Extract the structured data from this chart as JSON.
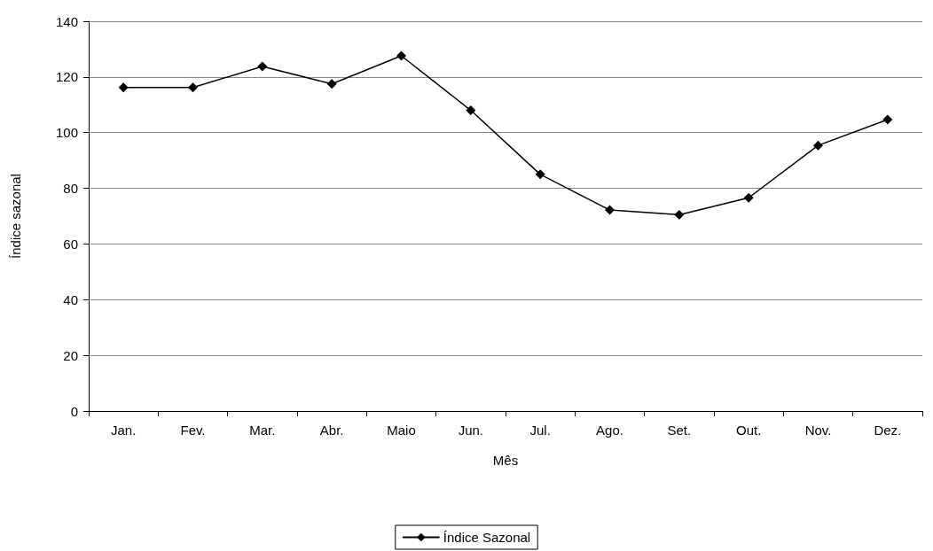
{
  "chart_data": {
    "type": "line",
    "xlabel": "Mês",
    "ylabel": "Índice sazonal",
    "categories": [
      "Jan.",
      "Fev.",
      "Mar.",
      "Abr.",
      "Maio",
      "Jun.",
      "Jul.",
      "Ago.",
      "Set.",
      "Out.",
      "Nov.",
      "Dez."
    ],
    "series": [
      {
        "name": "Índice Sazonal",
        "color": "#000000",
        "values": [
          116.2,
          116.2,
          123.8,
          117.5,
          127.6,
          108,
          85,
          72.2,
          70.5,
          76.6,
          95.4,
          104.7
        ]
      }
    ],
    "ylim": [
      0,
      140
    ],
    "yticks": [
      0,
      20,
      40,
      60,
      80,
      100,
      120,
      140
    ],
    "grid": "y",
    "legend": "bottom",
    "marker": "diamond",
    "line_style": "solid"
  }
}
